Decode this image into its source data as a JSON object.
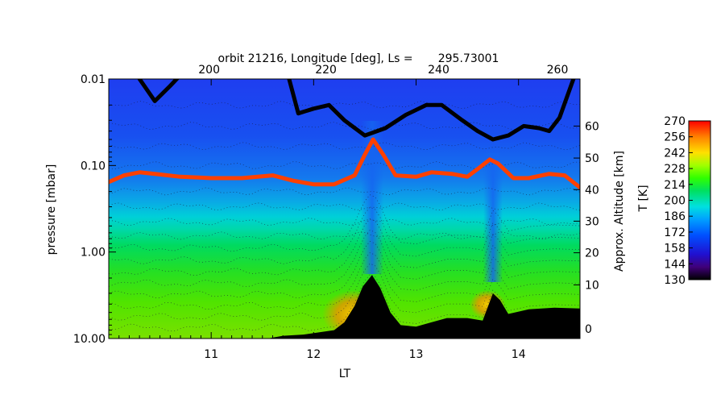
{
  "chart_data": {
    "type": "heatmap",
    "title": "orbit 21216, Longitude [deg], Ls =       295.73001",
    "xlabel": "LT",
    "ylabel": "pressure [mbar]",
    "ylabel_right": "Approx. Altitude [km]",
    "colorbar_label": "T [K]",
    "x_range": [
      10.0,
      14.6
    ],
    "y_range_pressure": [
      10.0,
      0.01
    ],
    "y_scale": "log",
    "x_ticks": [
      "11",
      "12",
      "13",
      "14"
    ],
    "x_tick_values": [
      11,
      12,
      13,
      14
    ],
    "y_ticks": [
      "10.00",
      "1.00",
      "0.10",
      "0.01"
    ],
    "y_tick_values": [
      10.0,
      1.0,
      0.1,
      0.01
    ],
    "top_ticks": [
      "200",
      "220",
      "240",
      "260"
    ],
    "top_tick_lt": [
      10.98,
      12.12,
      13.22,
      14.38
    ],
    "right_ticks": [
      "0",
      "10",
      "20",
      "30",
      "40",
      "50",
      "60"
    ],
    "right_tick_pressure": [
      7.75,
      2.4,
      1.02,
      0.44,
      0.19,
      0.082,
      0.035
    ],
    "colorbar_ticks": [
      "130",
      "144",
      "158",
      "172",
      "186",
      "200",
      "214",
      "228",
      "242",
      "256",
      "270"
    ],
    "colorbar_range": [
      130,
      270
    ],
    "contour_lines": "dotted",
    "series": [
      {
        "color": "#000000",
        "points_lt_pressure": [
          [
            10.3,
            0.01
          ],
          [
            10.45,
            0.018
          ],
          [
            10.6,
            0.012
          ],
          [
            10.7,
            0.009
          ],
          [
            11.75,
            0.009
          ],
          [
            11.85,
            0.025
          ],
          [
            12.0,
            0.022
          ],
          [
            12.15,
            0.02
          ],
          [
            12.3,
            0.03
          ],
          [
            12.5,
            0.045
          ],
          [
            12.7,
            0.037
          ],
          [
            12.9,
            0.026
          ],
          [
            13.1,
            0.02
          ],
          [
            13.25,
            0.02
          ],
          [
            13.45,
            0.03
          ],
          [
            13.6,
            0.04
          ],
          [
            13.75,
            0.05
          ],
          [
            13.9,
            0.045
          ],
          [
            14.05,
            0.035
          ],
          [
            14.2,
            0.037
          ],
          [
            14.3,
            0.04
          ],
          [
            14.4,
            0.028
          ],
          [
            14.55,
            0.009
          ]
        ]
      },
      {
        "color": "#ff4000",
        "points_lt_pressure": [
          [
            10.0,
            0.155
          ],
          [
            10.15,
            0.13
          ],
          [
            10.3,
            0.12
          ],
          [
            10.45,
            0.125
          ],
          [
            10.7,
            0.135
          ],
          [
            11.0,
            0.14
          ],
          [
            11.3,
            0.14
          ],
          [
            11.6,
            0.13
          ],
          [
            11.8,
            0.15
          ],
          [
            12.0,
            0.165
          ],
          [
            12.2,
            0.165
          ],
          [
            12.4,
            0.13
          ],
          [
            12.5,
            0.075
          ],
          [
            12.58,
            0.05
          ],
          [
            12.68,
            0.075
          ],
          [
            12.8,
            0.13
          ],
          [
            13.0,
            0.135
          ],
          [
            13.15,
            0.12
          ],
          [
            13.35,
            0.125
          ],
          [
            13.5,
            0.135
          ],
          [
            13.6,
            0.11
          ],
          [
            13.72,
            0.085
          ],
          [
            13.8,
            0.095
          ],
          [
            13.95,
            0.14
          ],
          [
            14.1,
            0.14
          ],
          [
            14.3,
            0.125
          ],
          [
            14.45,
            0.13
          ],
          [
            14.6,
            0.18
          ]
        ]
      }
    ],
    "surface_profile_lt_pressure": [
      [
        10.0,
        10.0
      ],
      [
        11.55,
        10.0
      ],
      [
        11.7,
        9.3
      ],
      [
        11.9,
        9.0
      ],
      [
        12.05,
        8.5
      ],
      [
        12.2,
        8.0
      ],
      [
        12.3,
        6.5
      ],
      [
        12.4,
        4.2
      ],
      [
        12.48,
        2.5
      ],
      [
        12.57,
        1.85
      ],
      [
        12.65,
        2.6
      ],
      [
        12.75,
        5.0
      ],
      [
        12.85,
        7.0
      ],
      [
        13.0,
        7.3
      ],
      [
        13.15,
        6.5
      ],
      [
        13.3,
        5.8
      ],
      [
        13.5,
        5.8
      ],
      [
        13.65,
        6.2
      ],
      [
        13.75,
        3.0
      ],
      [
        13.82,
        3.6
      ],
      [
        13.9,
        5.2
      ],
      [
        14.1,
        4.6
      ],
      [
        14.35,
        4.4
      ],
      [
        14.6,
        4.5
      ]
    ],
    "grid": false,
    "legend": "none"
  }
}
